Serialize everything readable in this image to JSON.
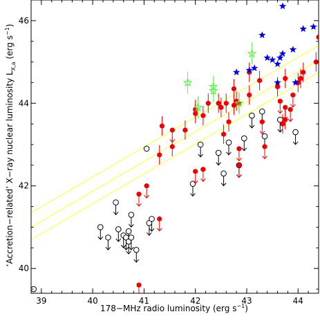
{
  "chart_data": {
    "type": "scatter",
    "xlabel_main": "178−MHz radio luminosity (erg s",
    "xlabel_sup": "−1",
    "xlabel_end": ")",
    "ylabel_main": "‘Accretion−related’ X−ray nuclear luminosity L",
    "ylabel_sub": "X,a",
    "ylabel_tail": " (erg s",
    "ylabel_sup": "−1",
    "ylabel_end": ")",
    "xlim": [
      38.8,
      44.4
    ],
    "ylim": [
      39.4,
      46.5
    ],
    "x_ticks": [
      39,
      40,
      41,
      42,
      43,
      44
    ],
    "y_ticks": [
      40,
      42,
      44,
      46
    ],
    "colors": {
      "axes": "#000000",
      "fit_lines": "#ffff66",
      "detection": "#ee0000",
      "upper_limit_open": "#000000",
      "star_blue": "#0000dd",
      "star_green": "#66ee55"
    },
    "fit_lines": [
      {
        "x": [
          38.8,
          44.4
        ],
        "y": [
          41.35,
          45.4
        ]
      },
      {
        "x": [
          38.8,
          44.4
        ],
        "y": [
          41.0,
          45.05
        ]
      },
      {
        "x": [
          38.8,
          44.4
        ],
        "y": [
          40.7,
          44.75
        ]
      }
    ],
    "blue_stars": [
      [
        43.7,
        46.35
      ],
      [
        44.1,
        45.8
      ],
      [
        44.3,
        45.85
      ],
      [
        43.3,
        45.65
      ],
      [
        43.9,
        45.3
      ],
      [
        43.4,
        45.1
      ],
      [
        43.5,
        45.05
      ],
      [
        43.65,
        45.1
      ],
      [
        43.7,
        45.2
      ],
      [
        43.6,
        44.95
      ],
      [
        43.05,
        44.8
      ],
      [
        42.8,
        44.75
      ],
      [
        43.15,
        44.85
      ],
      [
        43.6,
        44.5
      ],
      [
        43.95,
        44.5
      ]
    ],
    "green_stars": [
      [
        41.85,
        44.5
      ],
      [
        42.05,
        43.9
      ],
      [
        42.35,
        44.4
      ],
      [
        42.35,
        44.3
      ],
      [
        43.1,
        45.2
      ],
      [
        42.85,
        44.0
      ]
    ],
    "red_points": [
      [
        40.9,
        39.6,
        "up"
      ],
      [
        40.9,
        41.8,
        "up"
      ],
      [
        41.05,
        42.0,
        "up"
      ],
      [
        41.3,
        41.2,
        "up"
      ],
      [
        41.3,
        42.75,
        "err"
      ],
      [
        41.35,
        43.45,
        "err"
      ],
      [
        41.55,
        43.35,
        "up"
      ],
      [
        41.55,
        42.95,
        "err"
      ],
      [
        41.8,
        43.35,
        "err"
      ],
      [
        42.0,
        43.85,
        "err"
      ],
      [
        42.0,
        43.75,
        "err"
      ],
      [
        42.0,
        42.35,
        "up"
      ],
      [
        42.15,
        43.7,
        "err"
      ],
      [
        42.15,
        42.4,
        "up"
      ],
      [
        42.25,
        44.0,
        "err"
      ],
      [
        42.45,
        44.0,
        "err"
      ],
      [
        42.5,
        43.9,
        "err"
      ],
      [
        42.55,
        43.25,
        "err"
      ],
      [
        42.6,
        44.0,
        "err"
      ],
      [
        42.65,
        43.55,
        "err"
      ],
      [
        42.75,
        43.95,
        "err"
      ],
      [
        42.75,
        44.35,
        "err"
      ],
      [
        42.8,
        44.05,
        "err"
      ],
      [
        42.85,
        42.9,
        "up"
      ],
      [
        42.85,
        42.5,
        "up"
      ],
      [
        42.85,
        44.0,
        "err"
      ],
      [
        43.05,
        44.2,
        "err"
      ],
      [
        43.05,
        44.75,
        "err"
      ],
      [
        43.25,
        44.55,
        "err"
      ],
      [
        43.3,
        43.55,
        "up"
      ],
      [
        43.35,
        42.95,
        "up"
      ],
      [
        43.6,
        44.4,
        "err"
      ],
      [
        43.65,
        44.05,
        "up"
      ],
      [
        43.7,
        43.5,
        "err"
      ],
      [
        43.75,
        43.6,
        "err"
      ],
      [
        43.75,
        43.9,
        "up"
      ],
      [
        43.75,
        44.6,
        "err"
      ],
      [
        43.85,
        43.85,
        "up"
      ],
      [
        43.9,
        44.2,
        "up"
      ],
      [
        44.0,
        44.5,
        "err"
      ],
      [
        44.05,
        44.6,
        "err"
      ],
      [
        44.1,
        44.75,
        "err"
      ],
      [
        44.35,
        45.0,
        "err"
      ],
      [
        44.4,
        45.6,
        "err"
      ]
    ],
    "open_points": [
      [
        38.85,
        39.5,
        0
      ],
      [
        40.15,
        41.0,
        1
      ],
      [
        40.3,
        40.75,
        1
      ],
      [
        40.45,
        41.6,
        1
      ],
      [
        40.5,
        40.95,
        1
      ],
      [
        40.6,
        40.8,
        1
      ],
      [
        40.65,
        40.75,
        1
      ],
      [
        40.7,
        40.9,
        1
      ],
      [
        40.7,
        40.65,
        1
      ],
      [
        40.75,
        40.75,
        1
      ],
      [
        40.75,
        41.3,
        1
      ],
      [
        40.85,
        40.45,
        1
      ],
      [
        41.05,
        42.9,
        0
      ],
      [
        41.1,
        41.1,
        1
      ],
      [
        41.15,
        41.2,
        1
      ],
      [
        41.95,
        42.05,
        1
      ],
      [
        42.1,
        43.0,
        1
      ],
      [
        42.45,
        42.8,
        1
      ],
      [
        42.55,
        42.3,
        1
      ],
      [
        42.65,
        43.05,
        1
      ],
      [
        42.85,
        42.5,
        1
      ],
      [
        42.95,
        43.15,
        1
      ],
      [
        43.1,
        43.7,
        1
      ],
      [
        43.3,
        43.8,
        1
      ],
      [
        43.35,
        43.2,
        1
      ],
      [
        43.65,
        43.6,
        1
      ],
      [
        43.95,
        43.3,
        1
      ]
    ]
  }
}
